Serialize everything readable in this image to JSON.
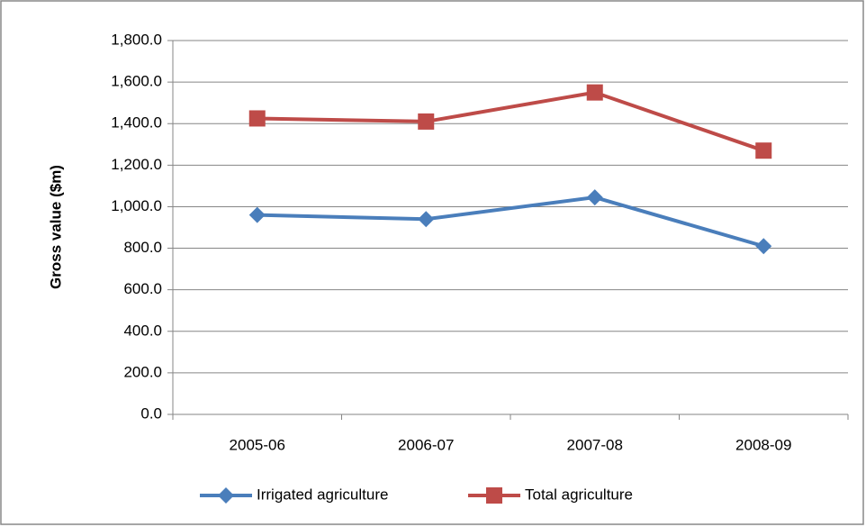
{
  "chart_data": {
    "type": "line",
    "y_label": "Gross value ($m)",
    "categories": [
      "2005-06",
      "2006-07",
      "2007-08",
      "2008-09"
    ],
    "series": [
      {
        "name": "Irrigated agriculture",
        "color": "#4a7ebb",
        "marker": "diamond",
        "values": [
          960,
          940,
          1045,
          810
        ]
      },
      {
        "name": "Total agriculture",
        "color": "#be4b48",
        "marker": "square",
        "values": [
          1425,
          1410,
          1550,
          1270
        ]
      }
    ],
    "ylim": [
      0,
      1800
    ],
    "yticks": [
      {
        "value": 0,
        "label": "0.0"
      },
      {
        "value": 200,
        "label": "200.0"
      },
      {
        "value": 400,
        "label": "400.0"
      },
      {
        "value": 600,
        "label": "600.0"
      },
      {
        "value": 800,
        "label": "800.0"
      },
      {
        "value": 1000,
        "label": "1,000.0"
      },
      {
        "value": 1200,
        "label": "1,200.0"
      },
      {
        "value": 1400,
        "label": "1,400.0"
      },
      {
        "value": 1600,
        "label": "1,600.0"
      },
      {
        "value": 1800,
        "label": "1,800.0"
      }
    ],
    "grid": true,
    "legend": "bottom"
  }
}
